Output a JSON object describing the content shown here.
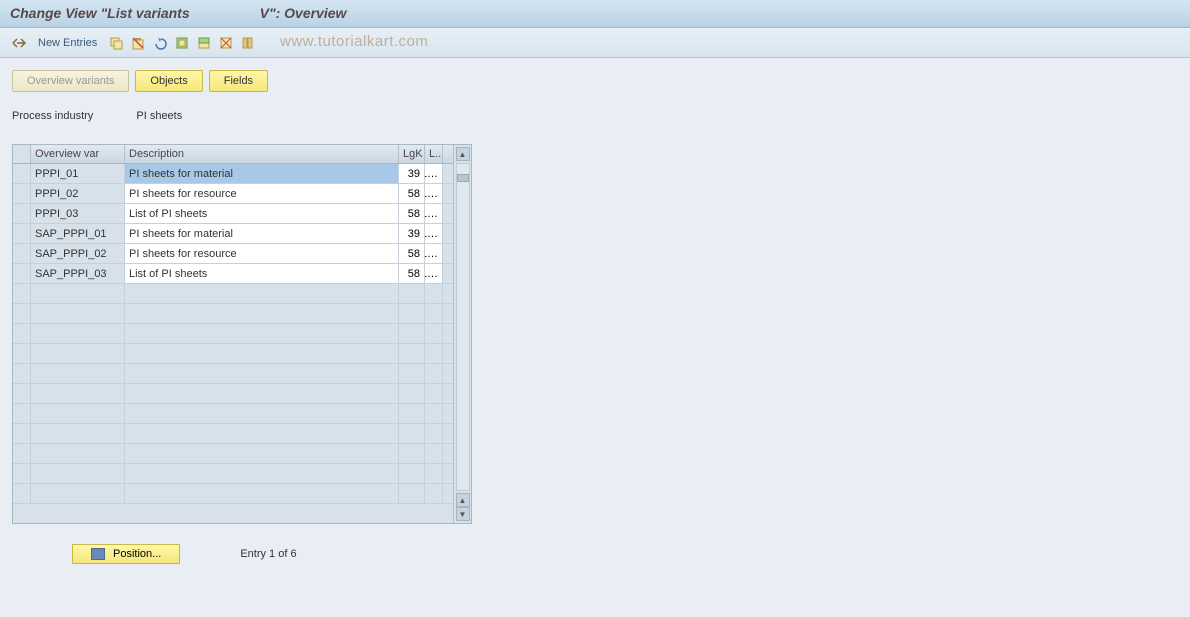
{
  "title": "Change View \"List variants                  V\": Overview",
  "toolbar": {
    "new_entries": "New Entries"
  },
  "watermark": "www.tutorialkart.com",
  "tabs": {
    "overview_variants": "Overview variants",
    "objects": "Objects",
    "fields": "Fields"
  },
  "info": {
    "label": "Process industry",
    "value": "PI sheets"
  },
  "columns": {
    "overview_var": "Overview var",
    "description": "Description",
    "lgk": "LgK",
    "l": "L.."
  },
  "rows": [
    {
      "var": "PPPI_01",
      "desc": "PI sheets for material",
      "lgk": "39",
      "l": "1…",
      "selected": true
    },
    {
      "var": "PPPI_02",
      "desc": "PI sheets for resource",
      "lgk": "58",
      "l": "1…",
      "selected": false
    },
    {
      "var": "PPPI_03",
      "desc": "List of PI sheets",
      "lgk": "58",
      "l": "1…",
      "selected": false
    },
    {
      "var": "SAP_PPPI_01",
      "desc": "PI sheets for material",
      "lgk": "39",
      "l": "1…",
      "selected": false
    },
    {
      "var": "SAP_PPPI_02",
      "desc": "PI sheets for resource",
      "lgk": "58",
      "l": "1…",
      "selected": false
    },
    {
      "var": "SAP_PPPI_03",
      "desc": "List of PI sheets",
      "lgk": "58",
      "l": "1…",
      "selected": false
    }
  ],
  "empty_rows": 11,
  "footer": {
    "position": "Position...",
    "entry": "Entry 1 of 6"
  },
  "colors": {
    "title_bg_top": "#d5e6f2",
    "title_bg_bottom": "#b8d2e5",
    "toolbar_bg_top": "#e8f0f6",
    "toolbar_bg_bottom": "#d8e4ed",
    "content_bg": "#e8eef4",
    "tab_active_top": "#fef7a8",
    "tab_active_bottom": "#f5e77a",
    "tab_inactive_top": "#f7f3dd",
    "tab_inactive_bottom": "#ede7c9",
    "table_readonly": "#d6e1ea",
    "table_edit": "#ffffff",
    "table_selected": "#a8c8e8",
    "border": "#a5b8c7"
  }
}
